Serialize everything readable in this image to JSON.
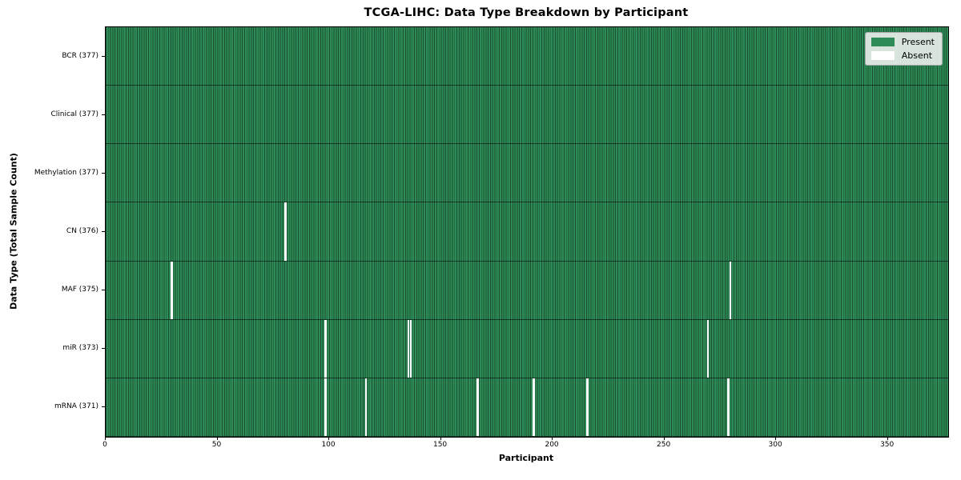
{
  "chart_data": {
    "type": "heatmap",
    "title": "TCGA-LIHC: Data Type Breakdown by Participant",
    "xlabel": "Participant",
    "ylabel": "Data Type (Total Sample Count)",
    "n_participants": 377,
    "x_range": [
      0,
      377
    ],
    "x_ticks": [
      0,
      50,
      100,
      150,
      200,
      250,
      300,
      350
    ],
    "grid": false,
    "legend_position": "upper right",
    "legend": [
      {
        "label": "Present",
        "color": "#2e8b57"
      },
      {
        "label": "Absent",
        "color": "#ffffff"
      }
    ],
    "rows": [
      {
        "label": "BCR (377)",
        "data_type": "BCR",
        "present_count": 377,
        "absent_participants": []
      },
      {
        "label": "Clinical (377)",
        "data_type": "Clinical",
        "present_count": 377,
        "absent_participants": []
      },
      {
        "label": "Methylation (377)",
        "data_type": "Methylation",
        "present_count": 377,
        "absent_participants": []
      },
      {
        "label": "CN (376)",
        "data_type": "CN",
        "present_count": 376,
        "absent_participants": [
          80
        ]
      },
      {
        "label": "MAF (375)",
        "data_type": "MAF",
        "present_count": 375,
        "absent_participants": [
          29,
          279
        ]
      },
      {
        "label": "miR (373)",
        "data_type": "miR",
        "present_count": 373,
        "absent_participants": [
          98,
          135,
          136,
          269
        ]
      },
      {
        "label": "mRNA (371)",
        "data_type": "mRNA",
        "present_count": 371,
        "absent_participants": [
          98,
          116,
          166,
          191,
          215,
          278
        ]
      }
    ],
    "colors": {
      "present": "#2e8b57",
      "absent": "#ffffff",
      "cell_edge": "rgba(0,0,0,0.42)",
      "row_separator": "rgba(0,0,0,0.55)",
      "plot_border": "#000000"
    }
  }
}
